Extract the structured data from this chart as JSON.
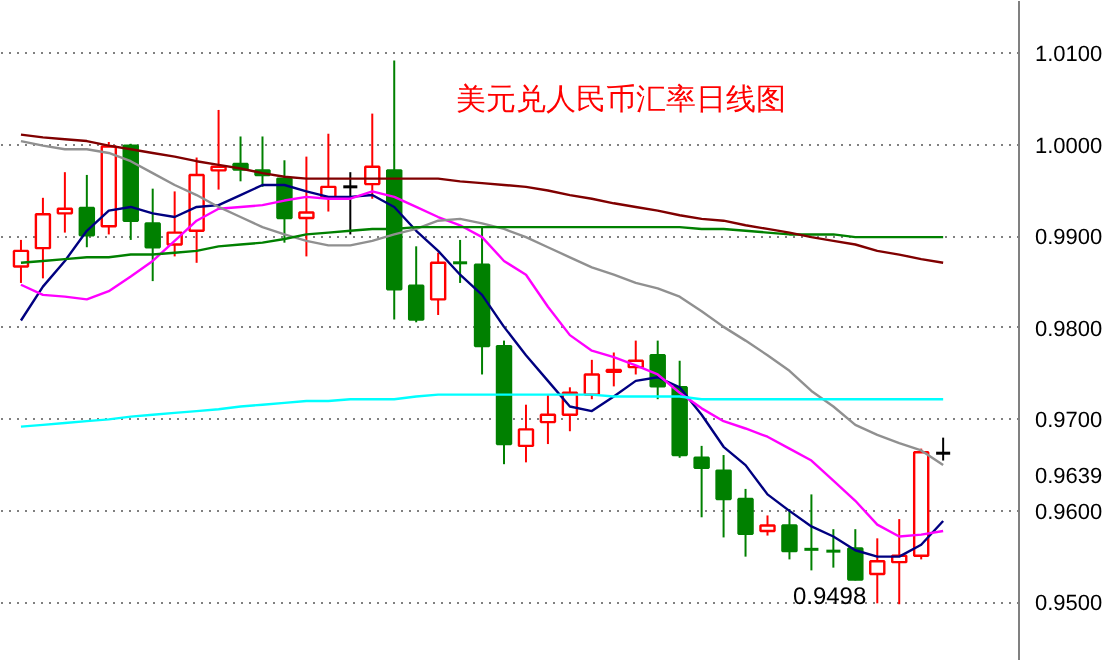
{
  "chart_data": {
    "type": "candlestick",
    "title": "美元兑人民币汇率日线图",
    "categories": [
      null,
      null,
      null,
      null,
      null,
      null,
      null,
      null,
      null,
      null,
      null,
      null,
      null,
      null,
      null,
      null,
      null,
      null,
      null,
      null,
      null,
      null,
      null,
      null,
      null,
      null,
      null,
      null,
      null,
      null,
      null,
      null,
      null,
      null,
      null,
      null,
      null,
      null,
      null,
      null,
      null,
      null,
      null
    ],
    "ohlc": [
      [
        0.9867,
        0.9896,
        0.9849,
        0.9884
      ],
      [
        0.9887,
        0.9942,
        0.9854,
        0.9924
      ],
      [
        0.9925,
        0.997,
        0.9904,
        0.993
      ],
      [
        0.9931,
        0.9967,
        0.9888,
        0.9901
      ],
      [
        0.9911,
        1.0003,
        0.9902,
        0.9998
      ],
      [
        0.9999,
        1.0001,
        0.9896,
        0.9917
      ],
      [
        0.9914,
        0.9952,
        0.9851,
        0.9888
      ],
      [
        0.9891,
        0.9949,
        0.9878,
        0.9904
      ],
      [
        0.9906,
        0.9986,
        0.9871,
        0.9967
      ],
      [
        0.9972,
        1.0038,
        0.9951,
        0.9976
      ],
      [
        0.9979,
        1.0009,
        0.996,
        0.9973
      ],
      [
        0.9972,
        1.0009,
        0.9954,
        0.9967
      ],
      [
        0.9963,
        0.9983,
        0.9893,
        0.992
      ],
      [
        0.992,
        0.9987,
        0.9878,
        0.9926
      ],
      [
        0.9942,
        1.0012,
        0.9927,
        0.9954
      ],
      [
        0.9954,
        0.997,
        0.9902,
        0.9954
      ],
      [
        0.9957,
        1.0034,
        0.9941,
        0.9976
      ],
      [
        0.9972,
        1.0092,
        0.9809,
        0.9842
      ],
      [
        0.9846,
        0.9889,
        0.9806,
        0.9809
      ],
      [
        0.9831,
        0.9882,
        0.9814,
        0.9871
      ],
      [
        0.9871,
        0.9896,
        0.9849,
        0.9871
      ],
      [
        0.9869,
        0.9911,
        0.9749,
        0.978
      ],
      [
        0.978,
        0.9786,
        0.9651,
        0.9673
      ],
      [
        0.9671,
        0.9716,
        0.9653,
        0.9689
      ],
      [
        0.9697,
        0.9727,
        0.9673,
        0.9705
      ],
      [
        0.9705,
        0.9735,
        0.9687,
        0.9729
      ],
      [
        0.9727,
        0.9765,
        0.9722,
        0.9749
      ],
      [
        0.9752,
        0.9773,
        0.9736,
        0.9754
      ],
      [
        0.9757,
        0.9786,
        0.9749,
        0.9764
      ],
      [
        0.977,
        0.9786,
        0.9722,
        0.9736
      ],
      [
        0.9735,
        0.9764,
        0.9658,
        0.9661
      ],
      [
        0.9658,
        0.9671,
        0.9593,
        0.9647
      ],
      [
        0.9644,
        0.9661,
        0.9571,
        0.9613
      ],
      [
        0.9613,
        0.9624,
        0.955,
        0.9575
      ],
      [
        0.9578,
        0.9595,
        0.9573,
        0.9584
      ],
      [
        0.9584,
        0.9602,
        0.9547,
        0.9556
      ],
      [
        0.9558,
        0.9618,
        0.9535,
        0.9558
      ],
      [
        0.9556,
        0.958,
        0.9538,
        0.9556
      ],
      [
        0.9559,
        0.958,
        0.9524,
        0.9525
      ],
      [
        0.9531,
        0.957,
        0.9499,
        0.9545
      ],
      [
        0.9544,
        0.9591,
        0.9498,
        0.9551
      ],
      [
        0.9551,
        0.9668,
        0.9547,
        0.9664
      ],
      [
        0.9663,
        0.968,
        0.9655,
        0.9663
      ]
    ],
    "colors": [
      "#ff0000",
      "#ff0000",
      "#ff0000",
      "#008000",
      "#ff0000",
      "#008000",
      "#008000",
      "#ff0000",
      "#ff0000",
      "#ff0000",
      "#008000",
      "#008000",
      "#008000",
      "#ff0000",
      "#ff0000",
      "#000000",
      "#ff0000",
      "#008000",
      "#008000",
      "#ff0000",
      "#008000",
      "#008000",
      "#008000",
      "#ff0000",
      "#ff0000",
      "#ff0000",
      "#ff0000",
      "#ff0000",
      "#ff0000",
      "#008000",
      "#008000",
      "#008000",
      "#008000",
      "#008000",
      "#ff0000",
      "#008000",
      "#008000",
      "#008000",
      "#008000",
      "#ff0000",
      "#ff0000",
      "#ff0000",
      "#000000"
    ],
    "series": [
      {
        "type": "line",
        "color": "#000080",
        "values": [
          0.9808,
          0.9845,
          0.9873,
          0.9906,
          0.9928,
          0.9932,
          0.9925,
          0.9921,
          0.9932,
          0.9934,
          0.9945,
          0.9956,
          0.9956,
          0.9949,
          0.9943,
          0.9943,
          0.9945,
          0.9932,
          0.9906,
          0.9884,
          0.9858,
          0.9836,
          0.9801,
          0.977,
          0.9742,
          0.9714,
          0.9709,
          0.9725,
          0.9742,
          0.9746,
          0.9735,
          0.9705,
          0.967,
          0.965,
          0.9618,
          0.96,
          0.9583,
          0.9572,
          0.9557,
          0.955,
          0.955,
          0.9563,
          0.9589
        ]
      },
      {
        "type": "line",
        "color": "#ff00ff",
        "values": [
          0.9847,
          0.9836,
          0.9834,
          0.9831,
          0.984,
          0.9856,
          0.9873,
          0.9895,
          0.9917,
          0.993,
          0.9932,
          0.9934,
          0.9939,
          0.9943,
          0.9941,
          0.9941,
          0.9949,
          0.9943,
          0.9932,
          0.9921,
          0.9912,
          0.9899,
          0.9873,
          0.9858,
          0.9823,
          0.9792,
          0.9775,
          0.9768,
          0.9759,
          0.9749,
          0.9729,
          0.9712,
          0.9698,
          0.969,
          0.9681,
          0.9668,
          0.9655,
          0.9633,
          0.9611,
          0.9585,
          0.9572,
          0.9574,
          0.9578
        ]
      },
      {
        "type": "line",
        "color": "#909090",
        "values": [
          1.0004,
          0.9999,
          0.9995,
          0.9995,
          0.9991,
          0.9982,
          0.9969,
          0.9956,
          0.9945,
          0.9932,
          0.9921,
          0.991,
          0.9902,
          0.9895,
          0.989,
          0.989,
          0.9895,
          0.9902,
          0.9908,
          0.9917,
          0.9919,
          0.9914,
          0.9908,
          0.9899,
          0.9888,
          0.9877,
          0.9866,
          0.9858,
          0.9849,
          0.9843,
          0.9834,
          0.9818,
          0.9801,
          0.9786,
          0.977,
          0.9753,
          0.9731,
          0.9714,
          0.9694,
          0.9683,
          0.9674,
          0.9666,
          0.965
        ]
      },
      {
        "type": "line",
        "color": "#008000",
        "values": [
          0.9871,
          0.9873,
          0.9875,
          0.9877,
          0.9877,
          0.988,
          0.988,
          0.9882,
          0.9884,
          0.9889,
          0.9891,
          0.9893,
          0.9897,
          0.9902,
          0.9904,
          0.9906,
          0.9908,
          0.9908,
          0.991,
          0.991,
          0.991,
          0.991,
          0.991,
          0.991,
          0.991,
          0.991,
          0.991,
          0.991,
          0.991,
          0.991,
          0.991,
          0.9908,
          0.9908,
          0.9906,
          0.9904,
          0.9902,
          0.9902,
          0.9902,
          0.9899,
          0.9899,
          0.9899,
          0.9899,
          0.9899
        ]
      },
      {
        "type": "line",
        "color": "#800000",
        "values": [
          1.0011,
          1.0008,
          1.0006,
          1.0004,
          0.9999,
          0.9995,
          0.9991,
          0.9987,
          0.9982,
          0.9978,
          0.9974,
          0.9969,
          0.9965,
          0.9963,
          0.9963,
          0.9963,
          0.9963,
          0.9963,
          0.9963,
          0.9963,
          0.996,
          0.9958,
          0.9956,
          0.9954,
          0.995,
          0.9945,
          0.9941,
          0.9936,
          0.9932,
          0.9928,
          0.9923,
          0.9919,
          0.9917,
          0.9912,
          0.9908,
          0.9904,
          0.9899,
          0.9895,
          0.9891,
          0.9884,
          0.988,
          0.9875,
          0.9871
        ]
      },
      {
        "type": "line",
        "color": "#00ffff",
        "values": [
          0.9692,
          0.9694,
          0.9696,
          0.9698,
          0.97,
          0.9703,
          0.9705,
          0.9707,
          0.9709,
          0.9711,
          0.9714,
          0.9716,
          0.9718,
          0.972,
          0.972,
          0.9722,
          0.9722,
          0.9722,
          0.9725,
          0.9727,
          0.9727,
          0.9727,
          0.9727,
          0.9727,
          0.9727,
          0.9727,
          0.9727,
          0.9725,
          0.9725,
          0.9725,
          0.9725,
          0.9722,
          0.9722,
          0.9722,
          0.9722,
          0.9722,
          0.9722,
          0.9722,
          0.9722,
          0.9722,
          0.9722,
          0.9722,
          0.9722
        ]
      }
    ],
    "ylim": [
      0.9436,
      1.0157
    ],
    "yticks": [
      {
        "value": 0.95,
        "label": "0.9500"
      },
      {
        "value": 0.96,
        "label": "0.9600"
      },
      {
        "value": 0.9639,
        "label": "0.9639"
      },
      {
        "value": 0.97,
        "label": "0.9700"
      },
      {
        "value": 0.98,
        "label": "0.9800"
      },
      {
        "value": 0.99,
        "label": "0.9900"
      },
      {
        "value": 1.0,
        "label": "1.0000"
      },
      {
        "value": 1.01,
        "label": "1.0100"
      }
    ],
    "tick_labels": "y",
    "grid": "y",
    "annotations": [
      "0.9498"
    ]
  }
}
